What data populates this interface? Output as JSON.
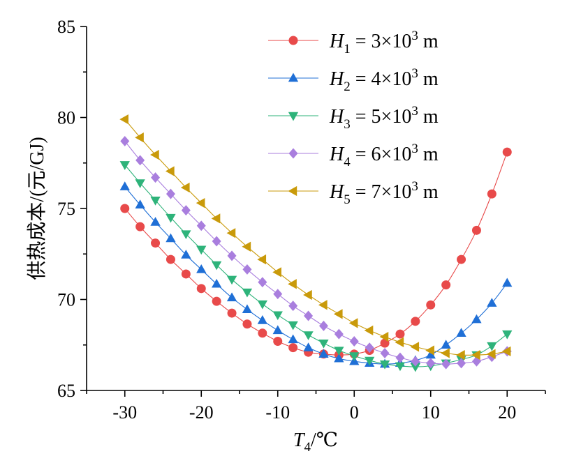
{
  "chart_data": {
    "type": "line",
    "xlabel": "T4/℃",
    "ylabel": "供热成本/(元/GJ)",
    "xlim": [
      -35,
      25
    ],
    "ylim": [
      65,
      85
    ],
    "xticks": [
      -30,
      -20,
      -10,
      0,
      10,
      20
    ],
    "yticks": [
      65,
      70,
      75,
      80,
      85
    ],
    "xtick_labels": [
      "-30",
      "-20",
      "-10",
      "0",
      "10",
      "20"
    ],
    "ytick_labels": [
      "65",
      "70",
      "75",
      "80",
      "85"
    ],
    "grid": false,
    "legend_position": "top-right",
    "x": [
      -30,
      -28,
      -26,
      -24,
      -22,
      -20,
      -18,
      -16,
      -14,
      -12,
      -10,
      -8,
      -6,
      -4,
      -2,
      0,
      2,
      4,
      6,
      8,
      10,
      12,
      14,
      16,
      18,
      20
    ],
    "series": [
      {
        "name": "H1 = 3×10³ m",
        "legend": {
          "var": "H",
          "sub": "1",
          "rest": " = 3×10",
          "sup": "3",
          "unit": " m"
        },
        "color": "#e84a4a",
        "marker": "circle",
        "values": [
          75.0,
          74.0,
          73.1,
          72.2,
          71.4,
          70.6,
          69.9,
          69.25,
          68.65,
          68.15,
          67.7,
          67.35,
          67.1,
          67.0,
          66.95,
          67.0,
          67.2,
          67.6,
          68.1,
          68.8,
          69.7,
          70.8,
          72.2,
          73.8,
          75.8,
          78.1
        ]
      },
      {
        "name": "H2 = 4×10³ m",
        "legend": {
          "var": "H",
          "sub": "2",
          "rest": " = 4×10",
          "sup": "3",
          "unit": " m"
        },
        "color": "#1f6fd6",
        "marker": "triangle-up",
        "values": [
          76.2,
          75.2,
          74.25,
          73.35,
          72.45,
          71.65,
          70.85,
          70.1,
          69.45,
          68.85,
          68.3,
          67.8,
          67.35,
          67.0,
          66.75,
          66.6,
          66.5,
          66.45,
          66.5,
          66.65,
          66.95,
          67.5,
          68.15,
          68.9,
          69.8,
          70.9
        ]
      },
      {
        "name": "H3 = 5×10³ m",
        "legend": {
          "var": "H",
          "sub": "3",
          "rest": " = 5×10",
          "sup": "3",
          "unit": " m"
        },
        "color": "#2eb37a",
        "marker": "triangle-down",
        "values": [
          77.4,
          76.4,
          75.45,
          74.5,
          73.6,
          72.75,
          71.9,
          71.1,
          70.4,
          69.75,
          69.15,
          68.6,
          68.05,
          67.6,
          67.2,
          66.9,
          66.65,
          66.45,
          66.35,
          66.3,
          66.35,
          66.5,
          66.7,
          66.95,
          67.45,
          68.1
        ]
      },
      {
        "name": "H4 = 6×10³ m",
        "legend": {
          "var": "H",
          "sub": "4",
          "rest": " = 6×10",
          "sup": "3",
          "unit": " m"
        },
        "color": "#a97ede",
        "marker": "diamond",
        "values": [
          78.7,
          77.65,
          76.7,
          75.8,
          74.9,
          74.05,
          73.2,
          72.4,
          71.65,
          70.95,
          70.3,
          69.65,
          69.1,
          68.55,
          68.1,
          67.7,
          67.35,
          67.05,
          66.8,
          66.6,
          66.5,
          66.45,
          66.5,
          66.6,
          66.85,
          67.15
        ]
      },
      {
        "name": "H5 = 7×10³ m",
        "legend": {
          "var": "H",
          "sub": "5",
          "rest": " = 7×10",
          "sup": "3",
          "unit": " m"
        },
        "color": "#c99a0a",
        "marker": "triangle-left",
        "values": [
          79.9,
          78.9,
          77.95,
          77.05,
          76.15,
          75.3,
          74.45,
          73.65,
          72.9,
          72.2,
          71.5,
          70.85,
          70.25,
          69.7,
          69.2,
          68.7,
          68.3,
          67.95,
          67.65,
          67.4,
          67.2,
          67.05,
          66.95,
          66.95,
          67.0,
          67.15
        ]
      }
    ]
  }
}
